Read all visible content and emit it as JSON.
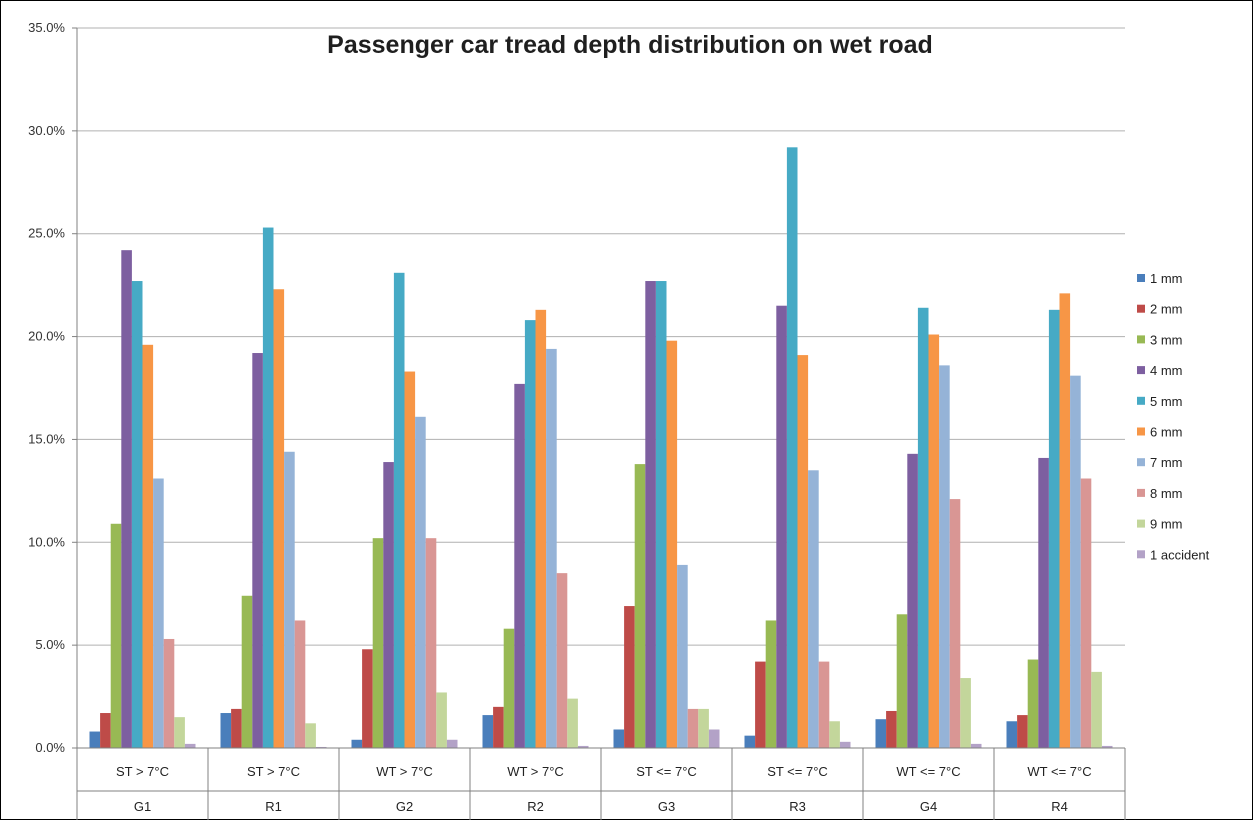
{
  "chart_data": {
    "type": "bar",
    "title": "Passenger car tread depth distribution on wet road",
    "ylim": [
      0,
      35
    ],
    "y_tick_labels": [
      "0.0%",
      "5.0%",
      "10.0%",
      "15.0%",
      "20.0%",
      "25.0%",
      "30.0%",
      "35.0%"
    ],
    "grid": true,
    "legend_position": "right",
    "categories": [
      {
        "condition": "ST > 7°C",
        "group": "G1"
      },
      {
        "condition": "ST > 7°C",
        "group": "R1"
      },
      {
        "condition": "WT > 7°C",
        "group": "G2"
      },
      {
        "condition": "WT > 7°C",
        "group": "R2"
      },
      {
        "condition": "ST <= 7°C",
        "group": "G3"
      },
      {
        "condition": "ST <= 7°C",
        "group": "R3"
      },
      {
        "condition": "WT <= 7°C",
        "group": "G4"
      },
      {
        "condition": "WT <= 7°C",
        "group": "R4"
      }
    ],
    "series": [
      {
        "name": "1 mm",
        "color": "#4a7ebb",
        "values": [
          0.8,
          1.7,
          0.4,
          1.6,
          0.9,
          0.6,
          1.4,
          1.3
        ]
      },
      {
        "name": "2 mm",
        "color": "#be4b48",
        "values": [
          1.7,
          1.9,
          4.8,
          2.0,
          6.9,
          4.2,
          1.8,
          1.6
        ]
      },
      {
        "name": "3 mm",
        "color": "#98b954",
        "values": [
          10.9,
          7.4,
          10.2,
          5.8,
          13.8,
          6.2,
          6.5,
          4.3
        ]
      },
      {
        "name": "4 mm",
        "color": "#7d5fa0",
        "values": [
          24.2,
          19.2,
          13.9,
          17.7,
          22.7,
          21.5,
          14.3,
          14.1
        ]
      },
      {
        "name": "5 mm",
        "color": "#46aac5",
        "values": [
          22.7,
          25.3,
          23.1,
          20.8,
          22.7,
          29.2,
          21.4,
          21.3
        ]
      },
      {
        "name": "6 mm",
        "color": "#f79646",
        "values": [
          19.6,
          22.3,
          18.3,
          21.3,
          19.8,
          19.1,
          20.1,
          22.1
        ]
      },
      {
        "name": "7 mm",
        "color": "#95b3d7",
        "values": [
          13.1,
          14.4,
          16.1,
          19.4,
          8.9,
          13.5,
          18.6,
          18.1
        ]
      },
      {
        "name": "8 mm",
        "color": "#d99694",
        "values": [
          5.3,
          6.2,
          10.2,
          8.5,
          1.9,
          4.2,
          12.1,
          13.1
        ]
      },
      {
        "name": "9 mm",
        "color": "#c3d69b",
        "values": [
          1.5,
          1.2,
          2.7,
          2.4,
          1.9,
          1.3,
          3.4,
          3.7
        ]
      },
      {
        "name": "1 accident",
        "color": "#b3a2c7",
        "values": [
          0.2,
          0.05,
          0.4,
          0.1,
          0.9,
          0.3,
          0.2,
          0.1
        ]
      }
    ]
  }
}
